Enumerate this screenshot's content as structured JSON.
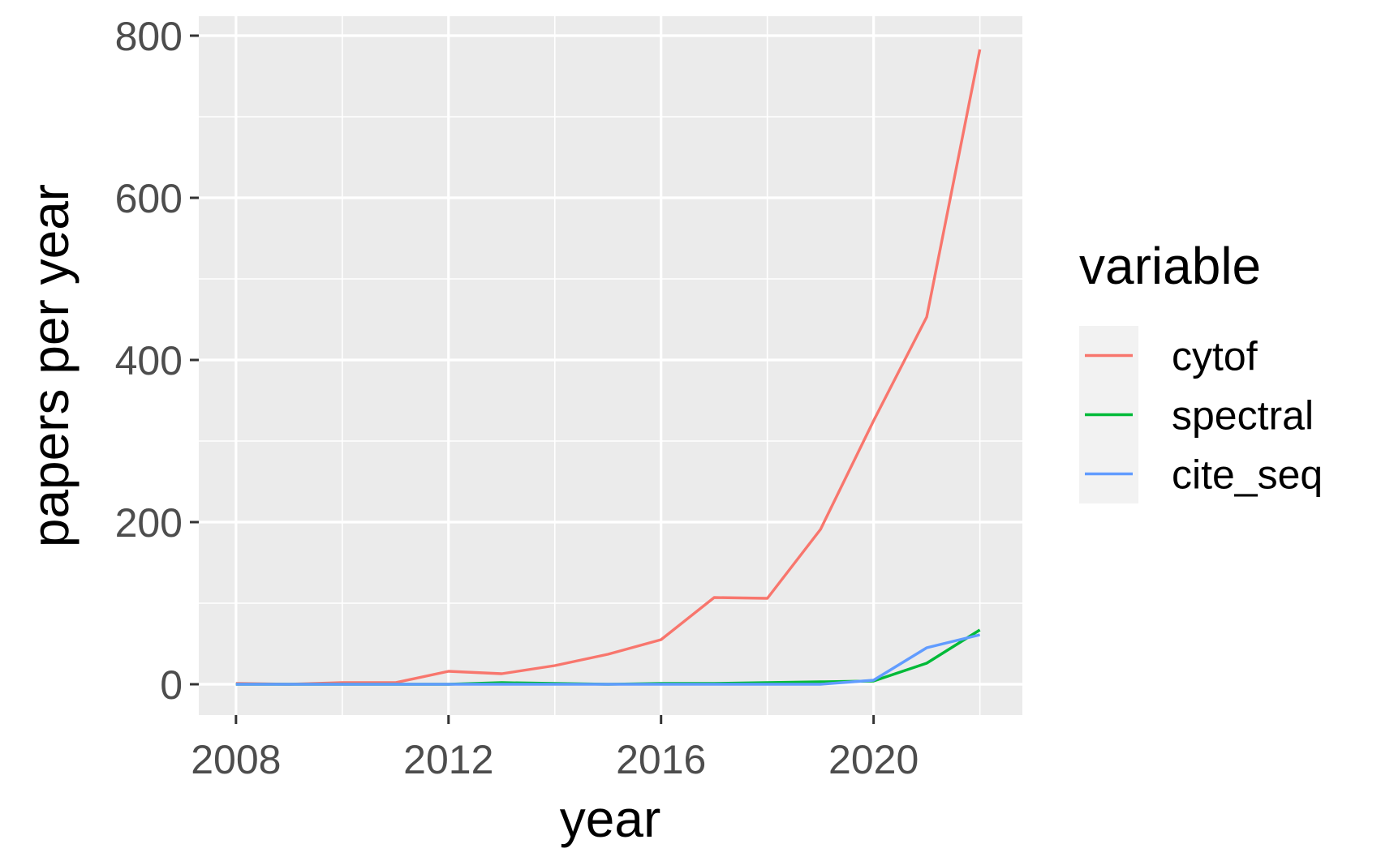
{
  "chart_data": {
    "type": "line",
    "title": "",
    "xlabel": "year",
    "ylabel": "papers per year",
    "xlim": [
      2007.3,
      2022.8
    ],
    "ylim": [
      -38,
      824
    ],
    "x_ticks": [
      2008,
      2012,
      2016,
      2020
    ],
    "x_minor": [
      2010,
      2014,
      2018,
      2022
    ],
    "y_ticks": [
      0,
      200,
      400,
      600,
      800
    ],
    "y_minor": [
      100,
      300,
      500,
      700
    ],
    "grid": true,
    "legend": {
      "title": "variable",
      "position": "right"
    },
    "x": [
      2008,
      2009,
      2010,
      2011,
      2012,
      2013,
      2014,
      2015,
      2016,
      2017,
      2018,
      2019,
      2020,
      2021,
      2022
    ],
    "series": [
      {
        "name": "cytof",
        "color": "#F8766D",
        "values": [
          1,
          0,
          2,
          2,
          16,
          13,
          23,
          37,
          55,
          107,
          106,
          191,
          325,
          453,
          783
        ]
      },
      {
        "name": "spectral",
        "color": "#00BA38",
        "values": [
          0,
          0,
          0,
          0,
          0,
          2,
          1,
          0,
          1,
          1,
          2,
          3,
          4,
          26,
          67
        ]
      },
      {
        "name": "cite_seq",
        "color": "#619CFF",
        "values": [
          0,
          0,
          0,
          0,
          0,
          0,
          0,
          0,
          0,
          0,
          0,
          0,
          5,
          45,
          61
        ]
      }
    ]
  }
}
